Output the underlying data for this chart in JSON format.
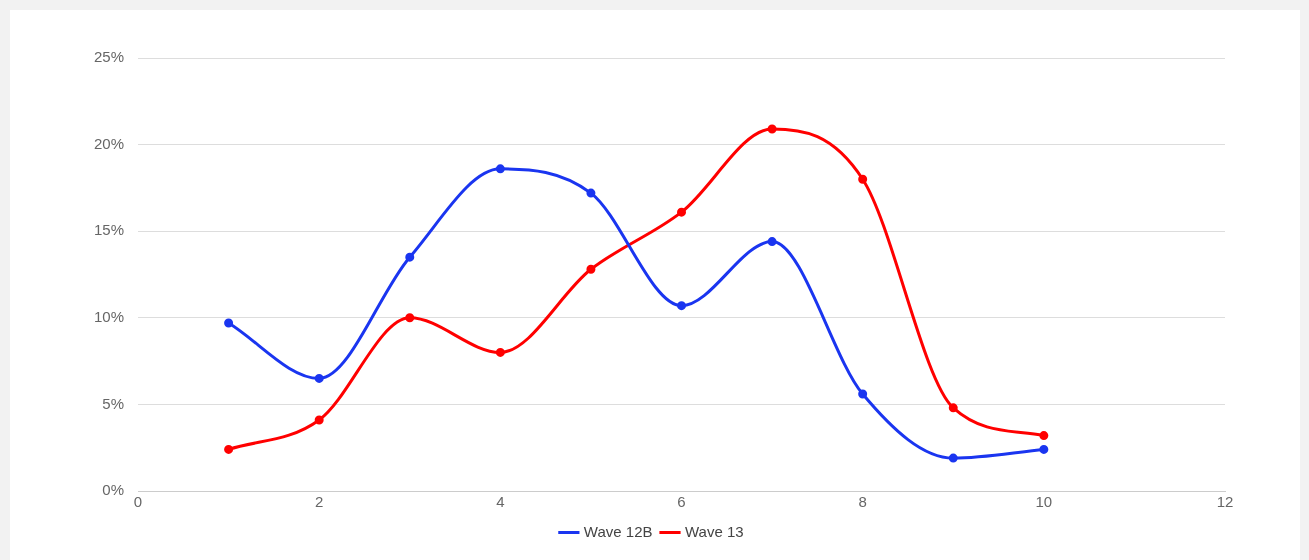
{
  "chart_data": {
    "type": "line",
    "x": [
      1,
      2,
      3,
      4,
      5,
      6,
      7,
      8,
      9,
      10
    ],
    "series": [
      {
        "name": "Wave 12B",
        "color": "#1a35f0",
        "values": [
          9.7,
          6.5,
          13.5,
          18.6,
          17.2,
          10.7,
          14.4,
          5.6,
          1.9,
          2.4
        ]
      },
      {
        "name": "Wave 13",
        "color": "#ff0000",
        "values": [
          2.4,
          4.1,
          10.0,
          8.0,
          12.8,
          16.1,
          20.9,
          18.0,
          4.8,
          3.2
        ]
      }
    ],
    "xlim": [
      0,
      12
    ],
    "xticks": [
      0,
      2,
      4,
      6,
      8,
      10,
      12
    ],
    "ylim": [
      0,
      25
    ],
    "yticks": [
      {
        "value": 0,
        "label": "0%"
      },
      {
        "value": 5,
        "label": "5%"
      },
      {
        "value": 10,
        "label": "10%"
      },
      {
        "value": 15,
        "label": "15%"
      },
      {
        "value": 20,
        "label": "20%"
      },
      {
        "value": 25,
        "label": "25%"
      }
    ],
    "grid": "y",
    "legend": "bottom",
    "marker": "circle",
    "line_style": "solid"
  }
}
